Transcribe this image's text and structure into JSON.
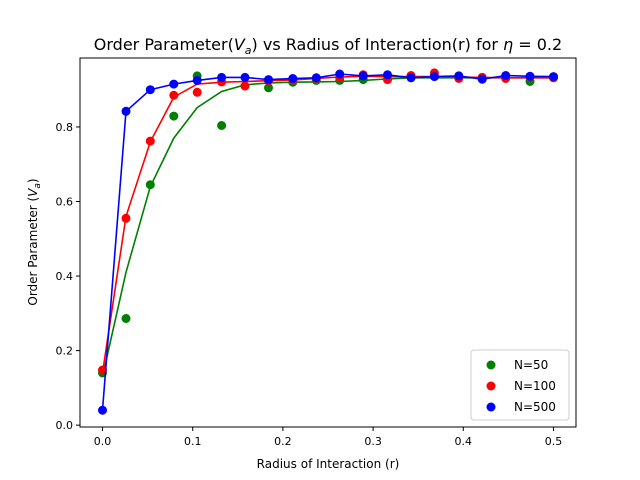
{
  "chart_data": {
    "type": "scatter",
    "title_prefix": "Order Parameter(",
    "title_var": "V",
    "title_sub": "a",
    "title_mid": ") vs Radius of Interaction(r) for ",
    "title_eta": "η",
    "title_suffix": " = 0.2",
    "xlabel": "Radius of Interaction (r)",
    "ylabel_prefix": "Order Parameter (",
    "ylabel_var": "V",
    "ylabel_sub": "a",
    "ylabel_suffix": ")",
    "xlim": [
      -0.025,
      0.525
    ],
    "ylim": [
      -0.005,
      0.985
    ],
    "xticks": [
      0.0,
      0.1,
      0.2,
      0.3,
      0.4,
      0.5
    ],
    "xtick_labels": [
      "0.0",
      "0.1",
      "0.2",
      "0.3",
      "0.4",
      "0.5"
    ],
    "yticks": [
      0.0,
      0.2,
      0.4,
      0.6,
      0.8
    ],
    "ytick_labels": [
      "0.0",
      "0.2",
      "0.4",
      "0.6",
      "0.8"
    ],
    "grid": false,
    "legend_position": "lower-right",
    "series": [
      {
        "name": "N=50",
        "color": "#008000",
        "points": [
          [
            0.0,
            0.14
          ],
          [
            0.026,
            0.286
          ],
          [
            0.053,
            0.645
          ],
          [
            0.079,
            0.829
          ],
          [
            0.105,
            0.937
          ],
          [
            0.132,
            0.804
          ],
          [
            0.158,
            0.91
          ],
          [
            0.184,
            0.905
          ],
          [
            0.211,
            0.92
          ],
          [
            0.237,
            0.925
          ],
          [
            0.263,
            0.925
          ],
          [
            0.289,
            0.927
          ],
          [
            0.316,
            0.937
          ],
          [
            0.342,
            0.934
          ],
          [
            0.368,
            0.937
          ],
          [
            0.395,
            0.937
          ],
          [
            0.421,
            0.933
          ],
          [
            0.447,
            0.935
          ],
          [
            0.474,
            0.922
          ],
          [
            0.5,
            0.932
          ]
        ],
        "fit": [
          [
            0.0,
            0.13
          ],
          [
            0.026,
            0.41
          ],
          [
            0.053,
            0.64
          ],
          [
            0.079,
            0.77
          ],
          [
            0.105,
            0.852
          ],
          [
            0.132,
            0.895
          ],
          [
            0.158,
            0.913
          ],
          [
            0.184,
            0.918
          ],
          [
            0.211,
            0.92
          ],
          [
            0.237,
            0.921
          ],
          [
            0.263,
            0.922
          ],
          [
            0.289,
            0.925
          ],
          [
            0.316,
            0.929
          ],
          [
            0.342,
            0.932
          ],
          [
            0.368,
            0.932
          ],
          [
            0.395,
            0.932
          ],
          [
            0.421,
            0.932
          ],
          [
            0.447,
            0.932
          ],
          [
            0.474,
            0.932
          ],
          [
            0.5,
            0.932
          ]
        ]
      },
      {
        "name": "N=100",
        "color": "#ff0000",
        "points": [
          [
            0.0,
            0.148
          ],
          [
            0.026,
            0.555
          ],
          [
            0.053,
            0.762
          ],
          [
            0.079,
            0.885
          ],
          [
            0.105,
            0.893
          ],
          [
            0.132,
            0.921
          ],
          [
            0.158,
            0.91
          ],
          [
            0.184,
            0.924
          ],
          [
            0.211,
            0.926
          ],
          [
            0.237,
            0.93
          ],
          [
            0.263,
            0.933
          ],
          [
            0.289,
            0.94
          ],
          [
            0.316,
            0.927
          ],
          [
            0.342,
            0.938
          ],
          [
            0.368,
            0.945
          ],
          [
            0.395,
            0.93
          ],
          [
            0.421,
            0.933
          ],
          [
            0.447,
            0.93
          ],
          [
            0.474,
            0.935
          ],
          [
            0.5,
            0.933
          ]
        ],
        "fit": [
          [
            0.0,
            0.14
          ],
          [
            0.026,
            0.56
          ],
          [
            0.053,
            0.76
          ],
          [
            0.079,
            0.88
          ],
          [
            0.105,
            0.915
          ],
          [
            0.132,
            0.92
          ],
          [
            0.158,
            0.922
          ],
          [
            0.184,
            0.924
          ],
          [
            0.211,
            0.926
          ],
          [
            0.237,
            0.93
          ],
          [
            0.263,
            0.934
          ],
          [
            0.289,
            0.936
          ],
          [
            0.316,
            0.935
          ],
          [
            0.342,
            0.935
          ],
          [
            0.368,
            0.935
          ],
          [
            0.395,
            0.934
          ],
          [
            0.421,
            0.933
          ],
          [
            0.447,
            0.932
          ],
          [
            0.474,
            0.932
          ],
          [
            0.5,
            0.932
          ]
        ]
      },
      {
        "name": "N=500",
        "color": "#0000ff",
        "points": [
          [
            0.0,
            0.04
          ],
          [
            0.026,
            0.842
          ],
          [
            0.053,
            0.9
          ],
          [
            0.079,
            0.915
          ],
          [
            0.105,
            0.925
          ],
          [
            0.132,
            0.933
          ],
          [
            0.158,
            0.933
          ],
          [
            0.184,
            0.927
          ],
          [
            0.211,
            0.93
          ],
          [
            0.237,
            0.932
          ],
          [
            0.263,
            0.942
          ],
          [
            0.289,
            0.937
          ],
          [
            0.316,
            0.94
          ],
          [
            0.342,
            0.932
          ],
          [
            0.368,
            0.935
          ],
          [
            0.395,
            0.937
          ],
          [
            0.421,
            0.928
          ],
          [
            0.447,
            0.938
          ],
          [
            0.474,
            0.936
          ],
          [
            0.5,
            0.935
          ]
        ],
        "fit": [
          [
            0.0,
            0.04
          ],
          [
            0.026,
            0.842
          ],
          [
            0.053,
            0.9
          ],
          [
            0.079,
            0.915
          ],
          [
            0.105,
            0.925
          ],
          [
            0.132,
            0.933
          ],
          [
            0.158,
            0.933
          ],
          [
            0.184,
            0.927
          ],
          [
            0.211,
            0.93
          ],
          [
            0.237,
            0.932
          ],
          [
            0.263,
            0.942
          ],
          [
            0.289,
            0.937
          ],
          [
            0.316,
            0.94
          ],
          [
            0.342,
            0.932
          ],
          [
            0.368,
            0.935
          ],
          [
            0.395,
            0.937
          ],
          [
            0.421,
            0.928
          ],
          [
            0.447,
            0.938
          ],
          [
            0.474,
            0.936
          ],
          [
            0.5,
            0.935
          ]
        ]
      }
    ]
  }
}
